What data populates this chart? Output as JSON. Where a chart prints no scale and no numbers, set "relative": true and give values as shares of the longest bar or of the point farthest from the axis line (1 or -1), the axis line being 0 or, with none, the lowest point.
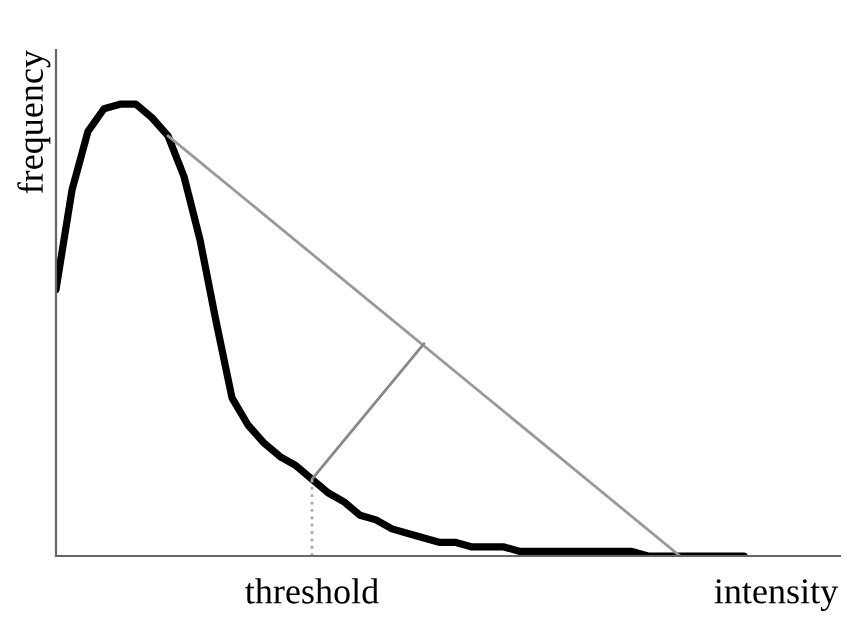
{
  "chart_data": {
    "type": "line",
    "relative": true,
    "ylabel": "frequency",
    "categories": [
      null,
      null,
      null,
      null,
      null,
      null,
      null,
      null,
      null,
      null,
      null,
      null,
      null,
      null,
      null,
      null,
      "threshold",
      null,
      null,
      null,
      null,
      null,
      null,
      null,
      null,
      null,
      null,
      null,
      null,
      null,
      null,
      null,
      null,
      null,
      null,
      null,
      null,
      null,
      null,
      null,
      null,
      null,
      null,
      null,
      null,
      "intensity",
      null,
      null,
      null,
      null
    ],
    "series": [
      {
        "color": "#000000",
        "values": [
          0.59,
          0.81,
          0.94,
          0.99,
          1,
          1,
          0.97,
          0.93,
          0.84,
          0.7,
          0.52,
          0.35,
          0.29,
          0.25,
          0.22,
          0.2,
          0.17,
          0.14,
          0.12,
          0.09,
          0.08,
          0.06,
          0.05,
          0.04,
          0.03,
          0.03,
          0.02,
          0.02,
          0.02,
          0.01,
          0.01,
          0.01,
          0.01,
          0.01,
          0.01,
          0.01,
          0.01,
          0,
          0,
          0,
          0,
          0,
          0,
          0,
          null,
          null,
          null,
          null,
          null,
          null
        ]
      },
      {
        "color": "#999999",
        "values": [
          null,
          null,
          null,
          null,
          null,
          null,
          null,
          0.93,
          null,
          null,
          null,
          null,
          null,
          null,
          null,
          null,
          null,
          null,
          null,
          null,
          null,
          null,
          null,
          null,
          null,
          null,
          null,
          null,
          null,
          null,
          null,
          null,
          null,
          null,
          null,
          null,
          null,
          null,
          null,
          0,
          null,
          null,
          null,
          null,
          null,
          null,
          null,
          null,
          null,
          null
        ]
      },
      {
        "color": "#888888",
        "values": [
          null,
          null,
          null,
          null,
          null,
          null,
          null,
          null,
          null,
          null,
          null,
          null,
          null,
          null,
          null,
          null,
          0.17,
          null,
          null,
          null,
          null,
          null,
          null,
          0.47,
          null,
          null,
          null,
          null,
          null,
          null,
          null,
          null,
          null,
          null,
          null,
          null,
          null,
          null,
          null,
          null,
          null,
          null,
          null,
          null,
          null,
          null,
          null,
          null,
          null,
          null
        ]
      }
    ],
    "ref_lines": [
      {
        "axis": "x",
        "value": "threshold",
        "color": "#aaaaaa",
        "line_style": "dotted"
      }
    ]
  }
}
